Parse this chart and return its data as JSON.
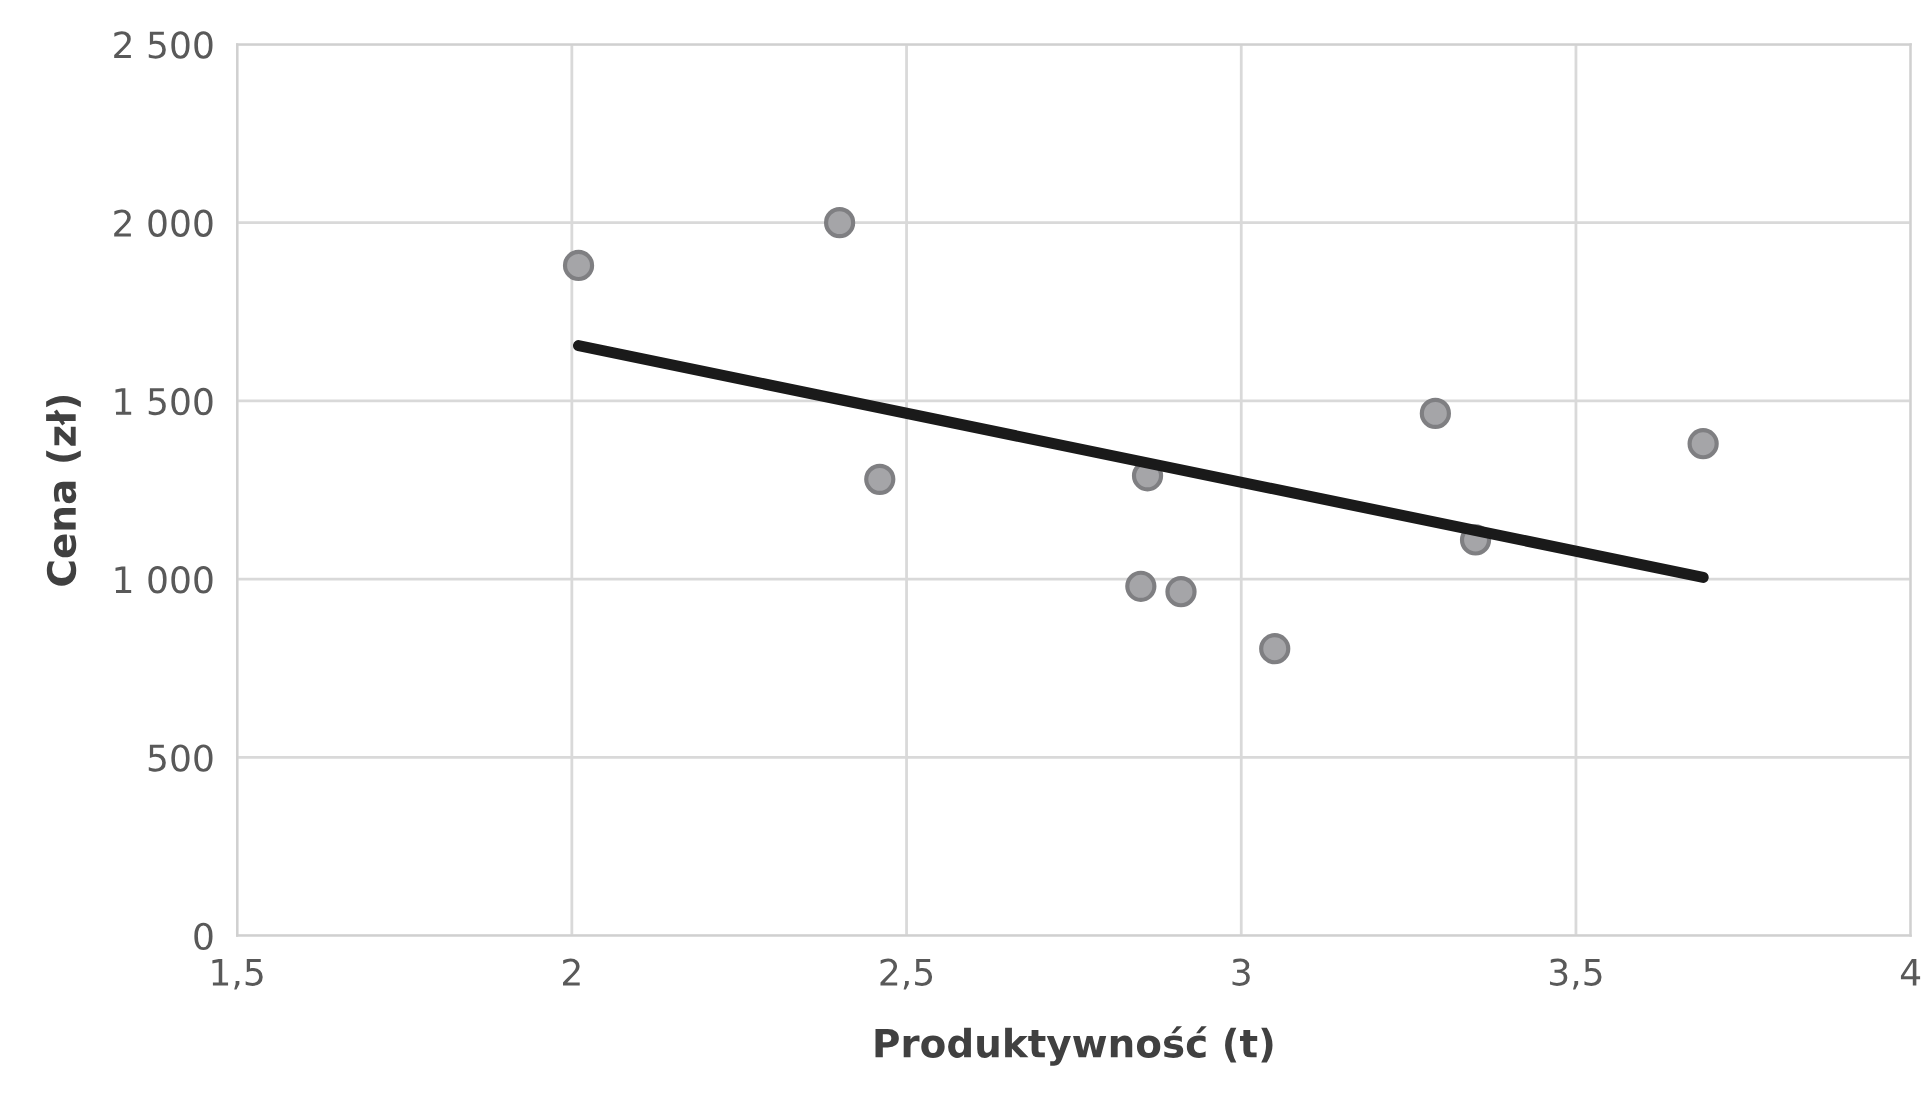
{
  "chart_data": {
    "type": "scatter",
    "xlabel": "Produktywność (t)",
    "ylabel": "Cena (zł)",
    "xlim": [
      1.5,
      4
    ],
    "xticks": [
      {
        "value": 1.5,
        "label": "1,5"
      },
      2,
      {
        "value": 2.5,
        "label": "2,5"
      },
      3,
      {
        "value": 3.5,
        "label": "3,5"
      },
      4
    ],
    "ylim": [
      0,
      2500
    ],
    "yticks": [
      0,
      500,
      {
        "value": 1000,
        "label": "1 000"
      },
      {
        "value": 1500,
        "label": "1 500"
      },
      {
        "value": 2000,
        "label": "2 000"
      },
      {
        "value": 2500,
        "label": "2 500"
      }
    ],
    "grid": true,
    "marker": "circle",
    "legend": false,
    "series": [
      {
        "color": "#a5a5a8",
        "x": [
          2.01,
          2.4,
          2.46,
          2.86,
          2.85,
          2.91,
          3.05,
          3.29,
          3.35,
          3.69
        ],
        "values": [
          1880,
          2000,
          1280,
          1290,
          980,
          965,
          805,
          1465,
          1110,
          1380
        ]
      },
      {
        "type": "line",
        "color": "#1a1a1a",
        "marker": "none",
        "line_style": "solid",
        "x": [
          2.01,
          3.69
        ],
        "values": [
          1655,
          1005
        ]
      }
    ]
  }
}
